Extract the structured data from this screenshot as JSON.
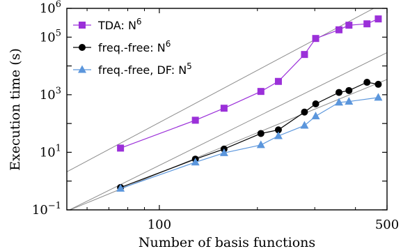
{
  "chart_data": {
    "type": "scatter",
    "xlabel": "Number of basis functions",
    "ylabel": "Execution time (s)",
    "xscale": "log",
    "yscale": "log",
    "xlim": [
      52,
      500
    ],
    "ylim": [
      0.1,
      1000000
    ],
    "xticks": [
      {
        "value": 100,
        "label": "100"
      },
      {
        "value": 500,
        "label": "500"
      }
    ],
    "yticks": [
      {
        "value": 0.1,
        "base": "10",
        "exp": "−1"
      },
      {
        "value": 10,
        "base": "10",
        "exp": "1"
      },
      {
        "value": 1000,
        "base": "10",
        "exp": "3"
      },
      {
        "value": 100000,
        "base": "10",
        "exp": "5"
      },
      {
        "value": 1000000,
        "base": "10",
        "exp": "6"
      }
    ],
    "grid": false,
    "legend_position": "top-left",
    "series": [
      {
        "name": "TDA: N",
        "name_sup": "6",
        "color": "#9b30d9",
        "marker": "square",
        "x": [
          76,
          129,
          158,
          205,
          232,
          279,
          302,
          356,
          382,
          434,
          470
        ],
        "y": [
          14,
          130,
          340,
          1300,
          2900,
          25000,
          90000,
          180000,
          260000,
          290000,
          430000
        ]
      },
      {
        "name": "freq.-free: N",
        "name_sup": "6",
        "color": "#000000",
        "marker": "circle",
        "x": [
          76,
          129,
          158,
          205,
          232,
          279,
          302,
          356,
          382,
          434,
          470
        ],
        "y": [
          0.6,
          5.8,
          13,
          45,
          60,
          250,
          480,
          1200,
          1400,
          2700,
          2300
        ]
      },
      {
        "name": "freq.-free, DF: N",
        "name_sup": "5",
        "color": "#5b96dc",
        "marker": "triangle",
        "x": [
          76,
          129,
          158,
          205,
          232,
          279,
          302,
          356,
          382,
          470
        ],
        "y": [
          0.55,
          4.5,
          9.5,
          18,
          37,
          85,
          180,
          540,
          580,
          800
        ]
      }
    ],
    "reference_lines": [
      {
        "color": "#8c8c8c",
        "x": [
          52,
          500
        ],
        "y": [
          2.1,
          1770000
        ]
      },
      {
        "color": "#8c8c8c",
        "x": [
          52,
          500
        ],
        "y": [
          0.09,
          29000
        ]
      },
      {
        "color": "#8c8c8c",
        "x": [
          52,
          500
        ],
        "y": [
          0.09,
          3400
        ]
      }
    ]
  }
}
